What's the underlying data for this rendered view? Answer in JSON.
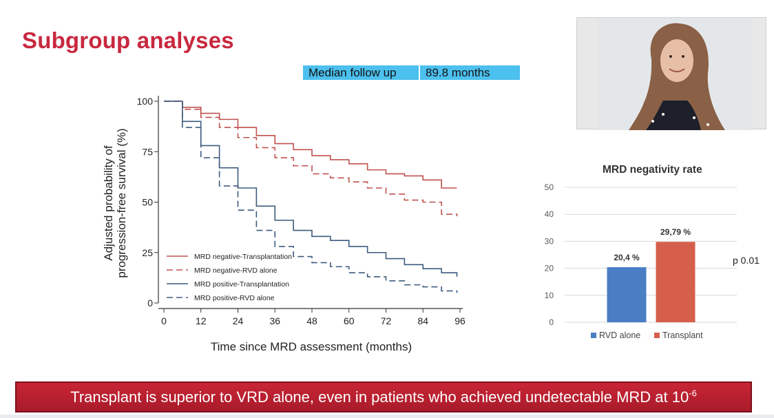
{
  "slide": {
    "title": "Subgroup analyses",
    "followup_label": "Median follow up",
    "followup_value": "89.8 months",
    "banner_text": "Transplant is superior to VRD alone, even in patients who achieved undetectable MRD at 10",
    "banner_exponent": "-6",
    "p_value": "p 0.01"
  },
  "chart_data": [
    {
      "type": "line",
      "title": "",
      "xlabel": "Time since MRD assessment (months)",
      "ylabel_line1": "Adjusted probability of",
      "ylabel_line2": "progression-free survival (%)",
      "x_ticks": [
        "0",
        "12",
        "24",
        "36",
        "48",
        "60",
        "72",
        "84",
        "96"
      ],
      "y_ticks": [
        "0",
        "25",
        "50",
        "75",
        "100"
      ],
      "xlim": [
        0,
        96
      ],
      "ylim": [
        0,
        100
      ],
      "legend_position": "bottom-left",
      "series": [
        {
          "name": "MRD negative-Transplantation",
          "color": "#c0504d",
          "style": "solid",
          "x": [
            0,
            6,
            12,
            18,
            24,
            30,
            36,
            42,
            48,
            54,
            60,
            66,
            72,
            78,
            84,
            90,
            95
          ],
          "y": [
            100,
            97,
            94,
            91,
            87,
            83,
            79,
            76,
            73,
            71,
            69,
            66,
            64,
            63,
            61,
            57,
            57
          ]
        },
        {
          "name": "MRD negative-RVD alone",
          "color": "#c0504d",
          "style": "dashed",
          "x": [
            0,
            6,
            12,
            18,
            24,
            30,
            36,
            42,
            48,
            54,
            60,
            66,
            72,
            78,
            84,
            90,
            95
          ],
          "y": [
            100,
            96,
            92,
            87,
            82,
            77,
            72,
            68,
            64,
            62,
            60,
            57,
            54,
            51,
            50,
            44,
            43
          ]
        },
        {
          "name": "MRD positive-Transplantation",
          "color": "#3b5a7d",
          "style": "solid",
          "x": [
            0,
            6,
            12,
            18,
            24,
            30,
            36,
            42,
            48,
            54,
            60,
            66,
            72,
            78,
            84,
            90,
            95
          ],
          "y": [
            100,
            90,
            78,
            67,
            57,
            48,
            41,
            36,
            33,
            31,
            28,
            25,
            22,
            19,
            17,
            15,
            13
          ]
        },
        {
          "name": "MRD positive-RVD alone",
          "color": "#3b5a7d",
          "style": "dashed",
          "x": [
            0,
            6,
            12,
            18,
            24,
            30,
            36,
            42,
            48,
            54,
            60,
            66,
            72,
            78,
            84,
            90,
            95
          ],
          "y": [
            100,
            87,
            72,
            58,
            46,
            36,
            28,
            23,
            20,
            18,
            15,
            13,
            11,
            9,
            8,
            6,
            5
          ]
        }
      ]
    },
    {
      "type": "bar",
      "title": "MRD negativity rate",
      "categories": [
        "RVD alone",
        "Transplant"
      ],
      "values": [
        20.4,
        29.79
      ],
      "data_labels": [
        "20,4 %",
        "29,79 %"
      ],
      "colors": [
        "#4a7ec4",
        "#d65f4b"
      ],
      "y_ticks": [
        "0",
        "10",
        "20",
        "30",
        "40",
        "50"
      ],
      "ylim": [
        0,
        50
      ],
      "grid": true,
      "legend_position": "bottom"
    }
  ]
}
